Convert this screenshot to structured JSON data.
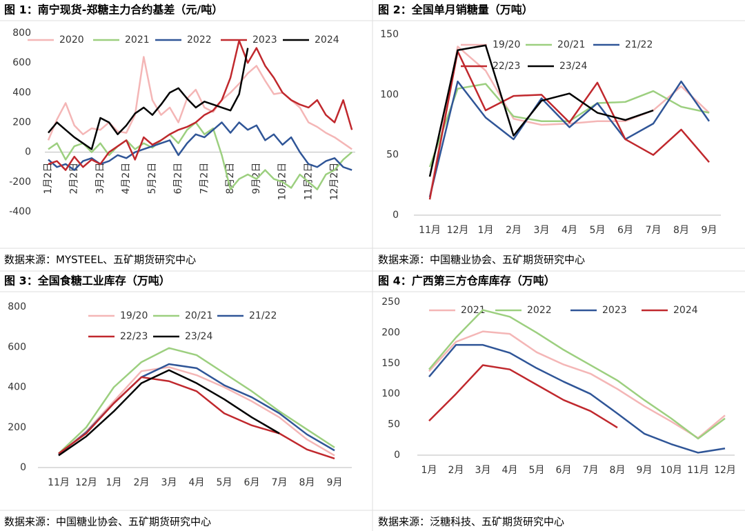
{
  "chart_data": [
    {
      "type": "line",
      "title": "图 1：南宁现货-郑糖主力合约基差（元/吨）",
      "source": "数据来源：MYSTEEL、五矿期货研究中心",
      "categories": [
        "1月2日",
        null,
        null,
        "2月2日",
        null,
        null,
        "3月2日",
        null,
        null,
        "4月2日",
        null,
        null,
        "5月2日",
        null,
        null,
        "6月2日",
        null,
        null,
        "7月2日",
        null,
        null,
        "8月2日",
        null,
        null,
        "9月2日",
        null,
        null,
        "10月2日",
        null,
        null,
        "11月2日",
        null,
        null,
        "12月2日",
        null,
        null
      ],
      "ylim": [
        -400,
        800
      ],
      "yticks": [
        -400,
        -200,
        0,
        200,
        400,
        600,
        800
      ],
      "series": [
        {
          "name": "2020",
          "color": "#f4b6b6",
          "values": [
            80,
            220,
            330,
            180,
            120,
            160,
            150,
            200,
            140,
            130,
            250,
            640,
            350,
            250,
            300,
            200,
            360,
            420,
            300,
            270,
            350,
            400,
            460,
            530,
            580,
            480,
            390,
            400,
            350,
            300,
            200,
            170,
            130,
            100,
            60,
            20
          ]
        },
        {
          "name": "2021",
          "color": "#9ccf7f",
          "values": [
            20,
            60,
            -50,
            40,
            60,
            0,
            60,
            -20,
            40,
            80,
            20,
            60,
            30,
            80,
            120,
            60,
            150,
            200,
            120,
            160,
            -20,
            -250,
            -180,
            -150,
            -180,
            -120,
            -180,
            -200,
            -240,
            -150,
            -200,
            -250,
            -150,
            -120,
            -50,
            0
          ]
        },
        {
          "name": "2022",
          "color": "#2f5597",
          "values": [
            -50,
            -100,
            -80,
            -120,
            -60,
            -40,
            -80,
            -60,
            -20,
            -40,
            0,
            20,
            40,
            60,
            80,
            -20,
            60,
            120,
            100,
            150,
            200,
            130,
            200,
            150,
            180,
            80,
            120,
            50,
            100,
            0,
            -80,
            -100,
            -60,
            -40,
            -100,
            -120
          ]
        },
        {
          "name": "2023",
          "color": "#c0282d",
          "values": [
            -80,
            -60,
            -120,
            -30,
            -100,
            -50,
            -80,
            0,
            40,
            80,
            -50,
            100,
            50,
            80,
            120,
            150,
            170,
            200,
            250,
            280,
            350,
            500,
            750,
            600,
            700,
            580,
            500,
            400,
            350,
            320,
            300,
            350,
            250,
            200,
            350,
            150
          ]
        },
        {
          "name": "2024",
          "color": "#000000",
          "values": [
            130,
            200,
            150,
            100,
            60,
            20,
            230,
            200,
            120,
            180,
            260,
            300,
            250,
            320,
            400,
            430,
            360,
            300,
            340,
            320,
            300,
            280,
            390,
            700,
            null,
            null,
            null,
            null,
            null,
            null,
            null,
            null,
            null,
            null,
            null,
            null
          ]
        }
      ]
    },
    {
      "type": "line",
      "title": "图 2：全国单月销糖量（万吨）",
      "source": "数据来源：中国糖业协会、五矿期货研究中心",
      "categories": [
        "11月",
        "12月",
        "1月",
        "2月",
        "3月",
        "4月",
        "5月",
        "6月",
        "7月",
        "8月",
        "9月"
      ],
      "ylim": [
        0,
        150
      ],
      "yticks": [
        0,
        50,
        100,
        150
      ],
      "series": [
        {
          "name": "19/20",
          "color": "#f4b6b6",
          "values": [
            15,
            140,
            120,
            80,
            75,
            76,
            78,
            78,
            87,
            107,
            85
          ]
        },
        {
          "name": "20/21",
          "color": "#9ccf7f",
          "values": [
            40,
            105,
            109,
            82,
            78,
            78,
            93,
            94,
            103,
            90,
            85
          ]
        },
        {
          "name": "21/22",
          "color": "#2f5597",
          "values": [
            15,
            111,
            81,
            63,
            97,
            73,
            93,
            63,
            76,
            111,
            78
          ]
        },
        {
          "name": "22/23",
          "color": "#c0282d",
          "values": [
            13,
            136,
            87,
            99,
            100,
            77,
            110,
            63,
            50,
            71,
            44
          ]
        },
        {
          "name": "23/24",
          "color": "#000000",
          "values": [
            32,
            137,
            141,
            66,
            95,
            101,
            85,
            79,
            87,
            null,
            null
          ]
        }
      ]
    },
    {
      "type": "line",
      "title": "图 3：全国食糖工业库存（万吨）",
      "source": "数据来源：中国糖业协会、五矿期货研究中心",
      "categories": [
        "11月",
        "12月",
        "1月",
        "2月",
        "3月",
        "4月",
        "5月",
        "6月",
        "7月",
        "8月",
        "9月"
      ],
      "ylim": [
        0,
        800
      ],
      "yticks": [
        0,
        200,
        400,
        600,
        800
      ],
      "series": [
        {
          "name": "19/20",
          "color": "#f4b6b6",
          "values": [
            65,
            180,
            330,
            480,
            500,
            460,
            400,
            330,
            250,
            140,
            60
          ]
        },
        {
          "name": "20/21",
          "color": "#9ccf7f",
          "values": [
            70,
            200,
            400,
            525,
            595,
            560,
            470,
            380,
            280,
            190,
            100
          ]
        },
        {
          "name": "21/22",
          "color": "#2f5597",
          "values": [
            65,
            175,
            320,
            450,
            515,
            495,
            410,
            350,
            270,
            165,
            85
          ]
        },
        {
          "name": "22/23",
          "color": "#c0282d",
          "values": [
            70,
            170,
            320,
            450,
            430,
            380,
            270,
            210,
            170,
            90,
            45
          ]
        },
        {
          "name": "23/24",
          "color": "#000000",
          "values": [
            60,
            155,
            280,
            420,
            485,
            420,
            340,
            250,
            170,
            null,
            null
          ]
        }
      ]
    },
    {
      "type": "line",
      "title": "图 4：广西第三方仓库库存（万吨）",
      "source": "数据来源：泛糖科技、五矿期货研究中心",
      "categories": [
        "1月",
        "2月",
        "3月",
        "4月",
        "5月",
        "6月",
        "7月",
        "8月",
        "9月",
        "10月",
        "11月",
        "12月"
      ],
      "ylim": [
        0,
        250
      ],
      "yticks": [
        0,
        50,
        100,
        150,
        200,
        250
      ],
      "series": [
        {
          "name": "2021",
          "color": "#f4b6b6",
          "values": [
            137,
            185,
            202,
            198,
            168,
            148,
            133,
            108,
            80,
            55,
            28,
            65
          ]
        },
        {
          "name": "2022",
          "color": "#9ccf7f",
          "values": [
            140,
            192,
            237,
            226,
            200,
            172,
            147,
            122,
            90,
            60,
            27,
            60
          ]
        },
        {
          "name": "2023",
          "color": "#2f5597",
          "values": [
            128,
            180,
            180,
            167,
            142,
            120,
            100,
            68,
            35,
            18,
            4,
            11
          ]
        },
        {
          "name": "2024",
          "color": "#c0282d",
          "values": [
            56,
            100,
            147,
            140,
            115,
            90,
            72,
            45,
            null,
            null,
            null,
            null
          ]
        }
      ]
    }
  ]
}
